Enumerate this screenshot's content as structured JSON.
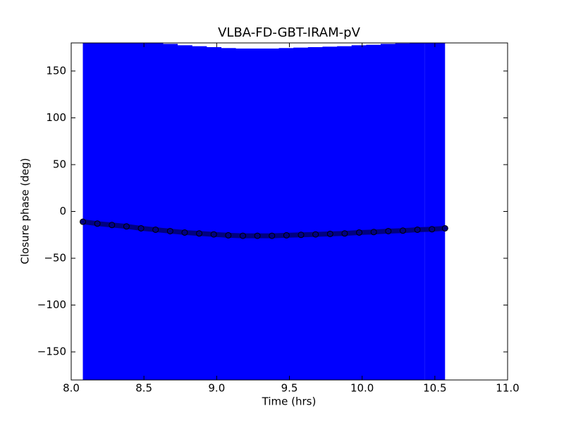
{
  "chart_data": {
    "type": "scatter",
    "title": "VLBA-FD-GBT-IRAM-pV",
    "x_label": "Time (hrs)",
    "y_label": "Closure phase (deg)",
    "xlim": [
      8.0,
      11.0
    ],
    "xticks": [
      {
        "value": 8.0,
        "label": "8.0"
      },
      8.5,
      {
        "value": 9.0,
        "label": "9.0"
      },
      9.5,
      {
        "value": 10.0,
        "label": "10.0"
      },
      10.5,
      {
        "value": 11.0,
        "label": "11.0"
      }
    ],
    "ylim": [
      -180,
      180
    ],
    "yticks": [
      {
        "value": -150,
        "label": "−150"
      },
      {
        "value": -100,
        "label": "−100"
      },
      {
        "value": -50,
        "label": "−50"
      },
      0,
      50,
      100,
      150
    ],
    "grid": false,
    "series": [
      {
        "color": "#000080",
        "error_color": "#0000ff",
        "yerr": 200,
        "x": [
          8.08,
          8.18,
          8.28,
          8.38,
          8.48,
          8.58,
          8.68,
          8.78,
          8.88,
          8.98,
          9.08,
          9.18,
          9.28,
          9.38,
          9.48,
          9.58,
          9.68,
          9.78,
          9.88,
          9.98,
          10.08,
          10.18,
          10.28,
          10.38,
          10.48,
          10.57
        ],
        "values": [
          -11,
          -13,
          -14.5,
          -16,
          -18,
          -19.5,
          -21,
          -22.5,
          -23.5,
          -24.5,
          -25.5,
          -26,
          -26,
          -26,
          -25.5,
          -25,
          -24.5,
          -24,
          -23.5,
          -22.5,
          -22,
          -21,
          -20.5,
          -19.5,
          -19,
          -18
        ]
      }
    ]
  }
}
